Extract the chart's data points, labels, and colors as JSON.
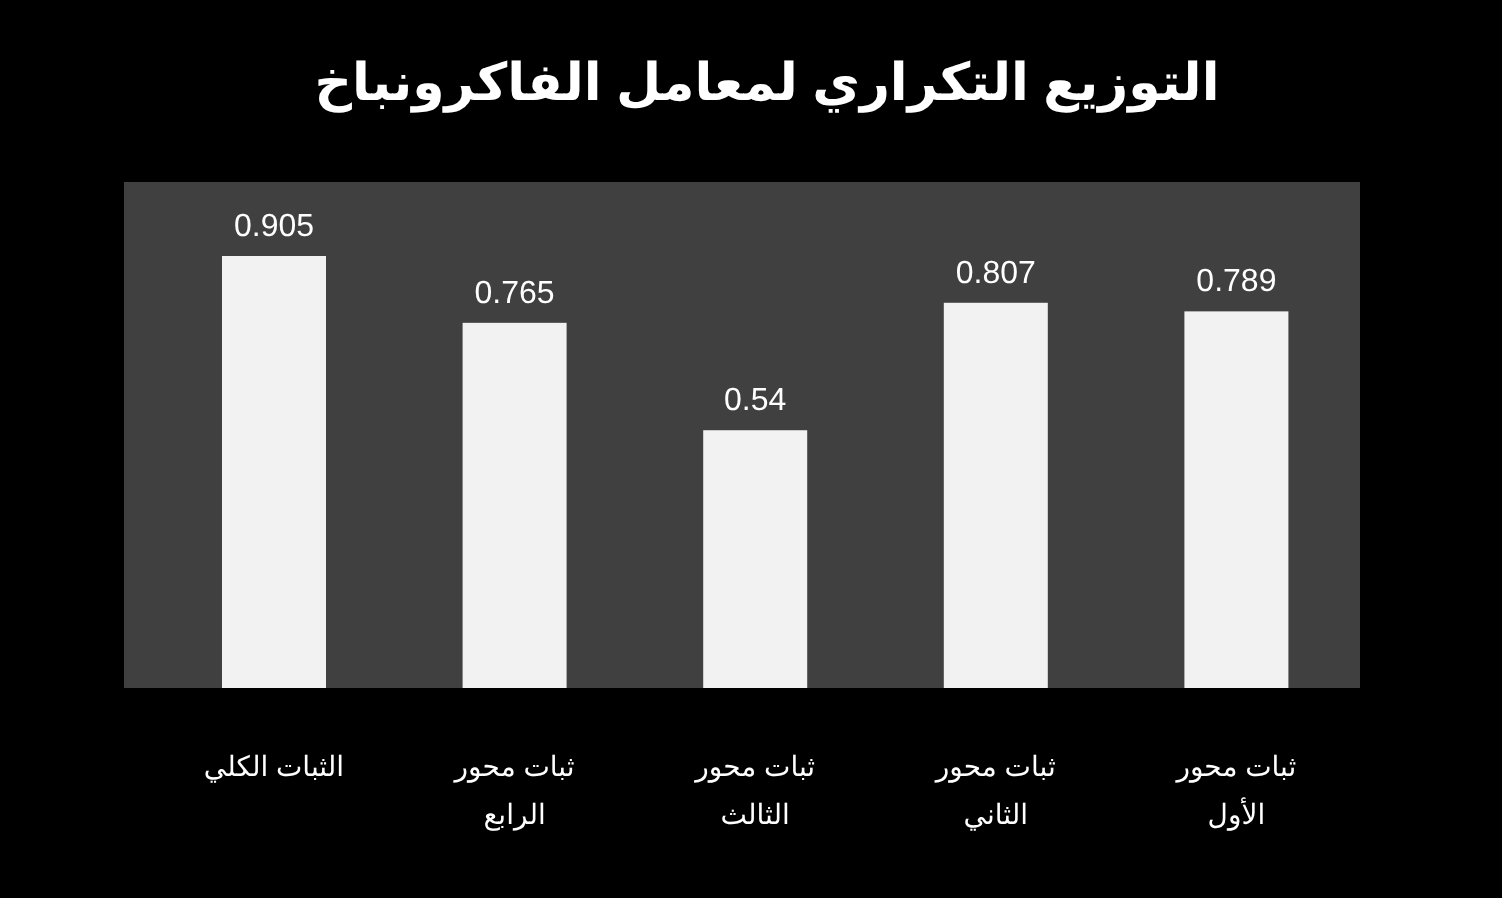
{
  "chart_data": {
    "type": "bar",
    "title": "التوزيع التكراري لمعامل الفاكرونباخ",
    "categories": [
      "الثبات الكلي",
      "ثبات محور الرابع",
      "ثبات محور الثالث",
      "ثبات محور الثاني",
      "ثبات محور الأول"
    ],
    "values": [
      0.905,
      0.765,
      0.54,
      0.807,
      0.789
    ],
    "color": "#f2f2f2",
    "data_labels": true
  }
}
